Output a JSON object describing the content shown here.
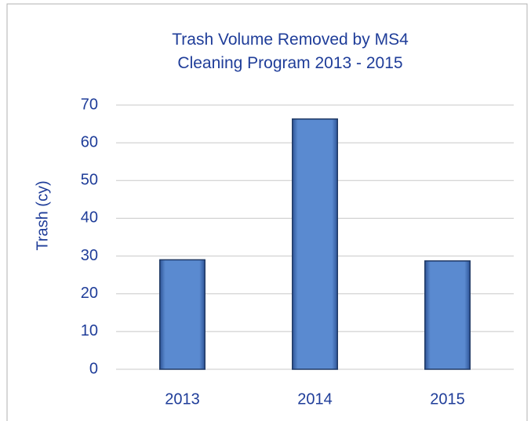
{
  "chart_data": {
    "type": "bar",
    "title": "Trash Volume Removed by MS4 Cleaning Program 2013 - 2015",
    "y_label": "Trash (cy)",
    "categories": [
      "2013",
      "2014",
      "2015"
    ],
    "values": [
      29,
      66.3,
      28.7
    ],
    "color": "#5a8ad0",
    "ylim": [
      0,
      70
    ],
    "yticks": [
      0,
      10,
      20,
      30,
      40,
      50,
      60,
      70
    ],
    "grid": true
  }
}
